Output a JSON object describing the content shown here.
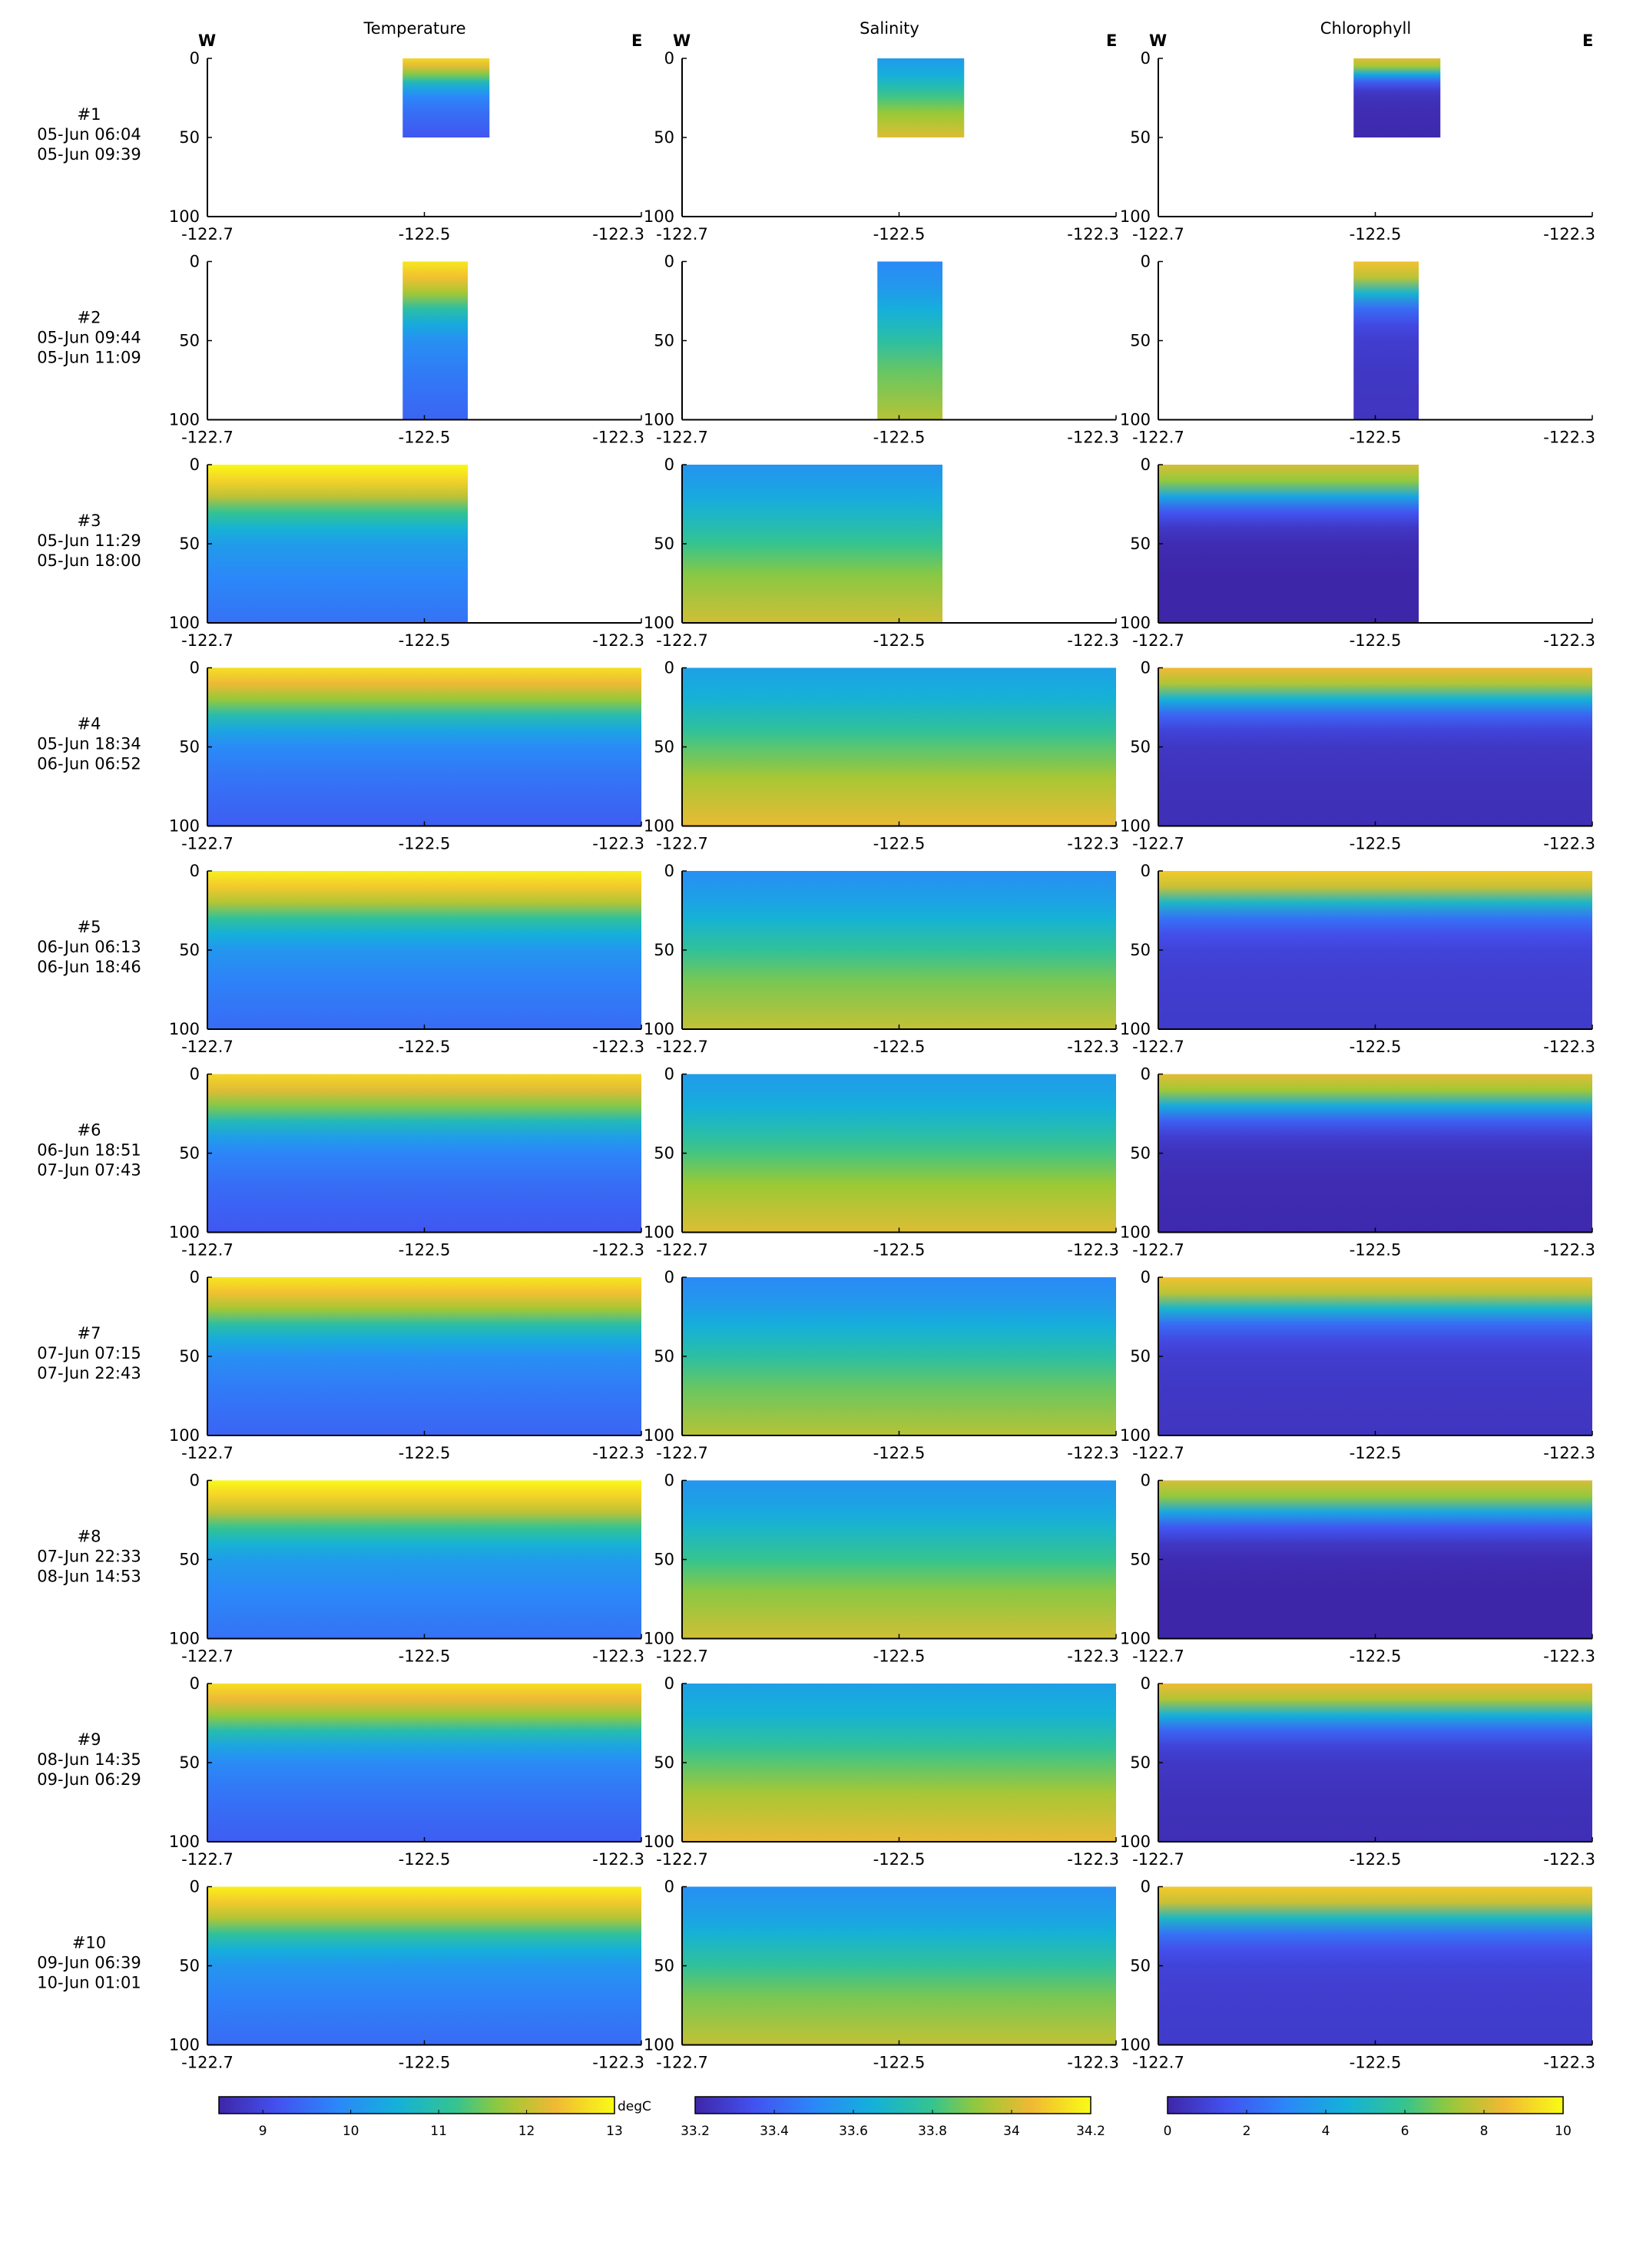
{
  "figure": {
    "columns": [
      {
        "title": "Temperature",
        "west": "W",
        "east": "E",
        "colormap": "parula",
        "colorbar": {
          "ticks": [
            "9",
            "10",
            "11",
            "12",
            "13"
          ],
          "tick_values": [
            9,
            10,
            11,
            12,
            13
          ],
          "range": [
            8.5,
            13
          ],
          "unit": "degC"
        }
      },
      {
        "title": "Salinity",
        "west": "W",
        "east": "E",
        "colormap": "parula",
        "colorbar": {
          "ticks": [
            "33.2",
            "33.4",
            "33.6",
            "33.8",
            "34",
            "34.2"
          ],
          "tick_values": [
            33.2,
            33.4,
            33.6,
            33.8,
            34.0,
            34.2
          ],
          "range": [
            33.2,
            34.2
          ],
          "unit": ""
        }
      },
      {
        "title": "Chlorophyll",
        "west": "W",
        "east": "E",
        "colormap": "parula",
        "colorbar": {
          "ticks": [
            "0",
            "2",
            "4",
            "6",
            "8",
            "10"
          ],
          "tick_values": [
            0,
            2,
            4,
            6,
            8,
            10
          ],
          "range": [
            0,
            10
          ],
          "unit": ""
        }
      }
    ],
    "x_ticks": [
      "-122.7",
      "-122.5",
      "-122.3"
    ],
    "y_ticks": [
      "0",
      "50",
      "100"
    ]
  },
  "chart_data": {
    "type": "heatmap",
    "description_of_grid": "3 columns (Temperature, Salinity, Chlorophyll) x 10 survey sections; x = longitude, y = depth",
    "xlim": [
      -122.7,
      -122.3
    ],
    "ylim": [
      0,
      100
    ],
    "y_reversed": true,
    "sections": [
      {
        "id": "#1",
        "start": "05-Jun 06:04",
        "end": "05-Jun 09:39",
        "lon_range": [
          -122.52,
          -122.44
        ],
        "max_depth": 50
      },
      {
        "id": "#2",
        "start": "05-Jun 09:44",
        "end": "05-Jun 11:09",
        "lon_range": [
          -122.52,
          -122.46
        ],
        "max_depth": 100
      },
      {
        "id": "#3",
        "start": "05-Jun 11:29",
        "end": "05-Jun 18:00",
        "lon_range": [
          -122.7,
          -122.46
        ],
        "max_depth": 100
      },
      {
        "id": "#4",
        "start": "05-Jun 18:34",
        "end": "06-Jun 06:52",
        "lon_range": [
          -122.7,
          -122.3
        ],
        "max_depth": 100
      },
      {
        "id": "#5",
        "start": "06-Jun 06:13",
        "end": "06-Jun 18:46",
        "lon_range": [
          -122.7,
          -122.3
        ],
        "max_depth": 100
      },
      {
        "id": "#6",
        "start": "06-Jun 18:51",
        "end": "07-Jun 07:43",
        "lon_range": [
          -122.7,
          -122.3
        ],
        "max_depth": 100
      },
      {
        "id": "#7",
        "start": "07-Jun 07:15",
        "end": "07-Jun 22:43",
        "lon_range": [
          -122.7,
          -122.3
        ],
        "max_depth": 100
      },
      {
        "id": "#8",
        "start": "07-Jun 22:33",
        "end": "08-Jun 14:53",
        "lon_range": [
          -122.7,
          -122.3
        ],
        "max_depth": 100
      },
      {
        "id": "#9",
        "start": "08-Jun 14:35",
        "end": "09-Jun 06:29",
        "lon_range": [
          -122.7,
          -122.3
        ],
        "max_depth": 100
      },
      {
        "id": "#10",
        "start": "09-Jun 06:39",
        "end": "10-Jun 01:01",
        "lon_range": [
          -122.7,
          -122.3
        ],
        "max_depth": 100
      }
    ],
    "typical_profiles": {
      "temperature_degC": {
        "depth": [
          0,
          10,
          20,
          30,
          40,
          50,
          70,
          100
        ],
        "value": [
          12.8,
          12.4,
          11.8,
          11.0,
          10.4,
          10.0,
          9.7,
          9.4
        ]
      },
      "salinity": {
        "depth": [
          0,
          10,
          20,
          30,
          40,
          50,
          70,
          100
        ],
        "value": [
          33.55,
          33.58,
          33.62,
          33.68,
          33.74,
          33.8,
          33.9,
          34.0
        ]
      },
      "chlorophyll": {
        "depth": [
          0,
          10,
          20,
          30,
          40,
          50,
          70,
          100
        ],
        "value": [
          8.5,
          7.5,
          4.5,
          2.0,
          1.0,
          0.6,
          0.4,
          0.3
        ]
      }
    }
  }
}
